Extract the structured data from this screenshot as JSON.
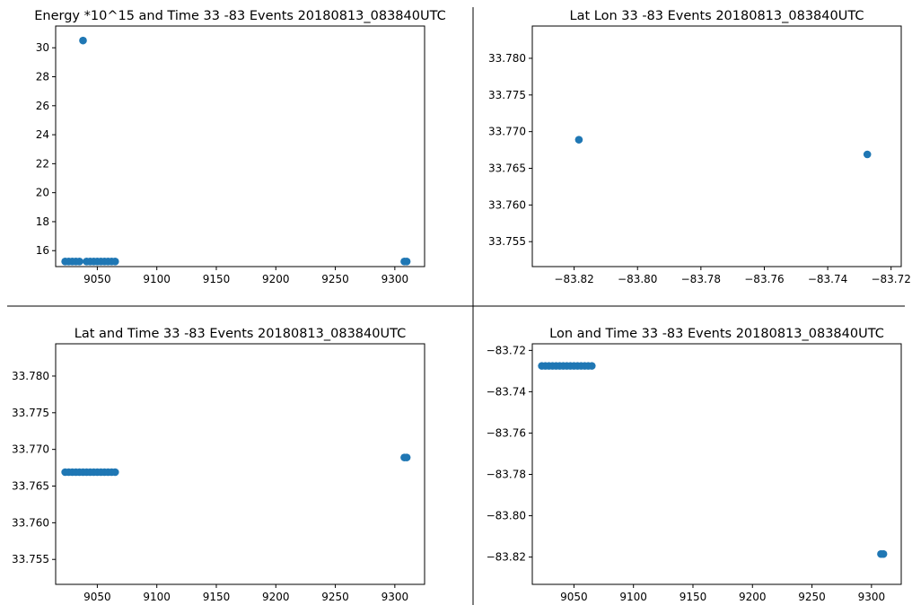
{
  "chart_data": [
    {
      "type": "scatter",
      "title": "Energy *10^15 and Time 33 -83 Events 20180813_083840UTC",
      "xlabel": "",
      "ylabel": "",
      "xlim": [
        9015,
        9325
      ],
      "ylim": [
        14.9,
        31.5
      ],
      "xticks": [
        9050,
        9100,
        9150,
        9200,
        9250,
        9300
      ],
      "xtick_labels": [
        "9050",
        "9100",
        "9150",
        "9200",
        "9250",
        "9300"
      ],
      "yticks": [
        16,
        18,
        20,
        22,
        24,
        26,
        28,
        30
      ],
      "ytick_labels": [
        "16",
        "18",
        "20",
        "22",
        "24",
        "26",
        "28",
        "30"
      ],
      "color": "#1f77b4",
      "grid": false,
      "points": [
        {
          "x": 9023,
          "y": 15.25
        },
        {
          "x": 9026,
          "y": 15.25
        },
        {
          "x": 9029,
          "y": 15.25
        },
        {
          "x": 9032,
          "y": 15.25
        },
        {
          "x": 9035,
          "y": 15.25
        },
        {
          "x": 9038,
          "y": 30.5
        },
        {
          "x": 9041,
          "y": 15.25
        },
        {
          "x": 9044,
          "y": 15.25
        },
        {
          "x": 9047,
          "y": 15.25
        },
        {
          "x": 9050,
          "y": 15.25
        },
        {
          "x": 9053,
          "y": 15.25
        },
        {
          "x": 9056,
          "y": 15.25
        },
        {
          "x": 9059,
          "y": 15.25
        },
        {
          "x": 9062,
          "y": 15.25
        },
        {
          "x": 9065,
          "y": 15.25
        },
        {
          "x": 9308,
          "y": 15.25
        },
        {
          "x": 9310,
          "y": 15.25
        }
      ]
    },
    {
      "type": "scatter",
      "title": "Lat Lon 33 -83 Events 20180813_083840UTC",
      "xlabel": "",
      "ylabel": "",
      "xlim": [
        -83.8332,
        -83.7168
      ],
      "ylim": [
        33.7516,
        33.7844
      ],
      "xticks": [
        -83.82,
        -83.8,
        -83.78,
        -83.76,
        -83.74,
        -83.72
      ],
      "xtick_labels": [
        "−83.82",
        "−83.80",
        "−83.78",
        "−83.76",
        "−83.74",
        "−83.72"
      ],
      "yticks": [
        33.755,
        33.76,
        33.765,
        33.77,
        33.775,
        33.78
      ],
      "ytick_labels": [
        "33.755",
        "33.760",
        "33.765",
        "33.770",
        "33.775",
        "33.780"
      ],
      "color": "#1f77b4",
      "grid": false,
      "points": [
        {
          "x": -83.8185,
          "y": 33.7689
        },
        {
          "x": -83.7275,
          "y": 33.7669
        }
      ]
    },
    {
      "type": "scatter",
      "title": "Lat and Time 33 -83 Events 20180813_083840UTC",
      "xlabel": "",
      "ylabel": "",
      "xlim": [
        9015,
        9325
      ],
      "ylim": [
        33.7516,
        33.7844
      ],
      "xticks": [
        9050,
        9100,
        9150,
        9200,
        9250,
        9300
      ],
      "xtick_labels": [
        "9050",
        "9100",
        "9150",
        "9200",
        "9250",
        "9300"
      ],
      "yticks": [
        33.755,
        33.76,
        33.765,
        33.77,
        33.775,
        33.78
      ],
      "ytick_labels": [
        "33.755",
        "33.760",
        "33.765",
        "33.770",
        "33.775",
        "33.780"
      ],
      "color": "#1f77b4",
      "grid": false,
      "points": [
        {
          "x": 9023,
          "y": 33.7669
        },
        {
          "x": 9026,
          "y": 33.7669
        },
        {
          "x": 9029,
          "y": 33.7669
        },
        {
          "x": 9032,
          "y": 33.7669
        },
        {
          "x": 9035,
          "y": 33.7669
        },
        {
          "x": 9038,
          "y": 33.7669
        },
        {
          "x": 9041,
          "y": 33.7669
        },
        {
          "x": 9044,
          "y": 33.7669
        },
        {
          "x": 9047,
          "y": 33.7669
        },
        {
          "x": 9050,
          "y": 33.7669
        },
        {
          "x": 9053,
          "y": 33.7669
        },
        {
          "x": 9056,
          "y": 33.7669
        },
        {
          "x": 9059,
          "y": 33.7669
        },
        {
          "x": 9062,
          "y": 33.7669
        },
        {
          "x": 9065,
          "y": 33.7669
        },
        {
          "x": 9308,
          "y": 33.7689
        },
        {
          "x": 9310,
          "y": 33.7689
        }
      ]
    },
    {
      "type": "scatter",
      "title": "Lon and Time 33 -83 Events 20180813_083840UTC",
      "xlabel": "",
      "ylabel": "",
      "xlim": [
        9015,
        9325
      ],
      "ylim": [
        -83.8332,
        -83.7168
      ],
      "xticks": [
        9050,
        9100,
        9150,
        9200,
        9250,
        9300
      ],
      "xtick_labels": [
        "9050",
        "9100",
        "9150",
        "9200",
        "9250",
        "9300"
      ],
      "yticks": [
        -83.82,
        -83.8,
        -83.78,
        -83.76,
        -83.74,
        -83.72
      ],
      "ytick_labels": [
        "−83.82",
        "−83.80",
        "−83.78",
        "−83.76",
        "−83.74",
        "−83.72"
      ],
      "color": "#1f77b4",
      "grid": false,
      "points": [
        {
          "x": 9023,
          "y": -83.7275
        },
        {
          "x": 9026,
          "y": -83.7275
        },
        {
          "x": 9029,
          "y": -83.7275
        },
        {
          "x": 9032,
          "y": -83.7275
        },
        {
          "x": 9035,
          "y": -83.7275
        },
        {
          "x": 9038,
          "y": -83.7275
        },
        {
          "x": 9041,
          "y": -83.7275
        },
        {
          "x": 9044,
          "y": -83.7275
        },
        {
          "x": 9047,
          "y": -83.7275
        },
        {
          "x": 9050,
          "y": -83.7275
        },
        {
          "x": 9053,
          "y": -83.7275
        },
        {
          "x": 9056,
          "y": -83.7275
        },
        {
          "x": 9059,
          "y": -83.7275
        },
        {
          "x": 9062,
          "y": -83.7275
        },
        {
          "x": 9065,
          "y": -83.7275
        },
        {
          "x": 9308,
          "y": -83.8185
        },
        {
          "x": 9310,
          "y": -83.8185
        }
      ]
    }
  ]
}
